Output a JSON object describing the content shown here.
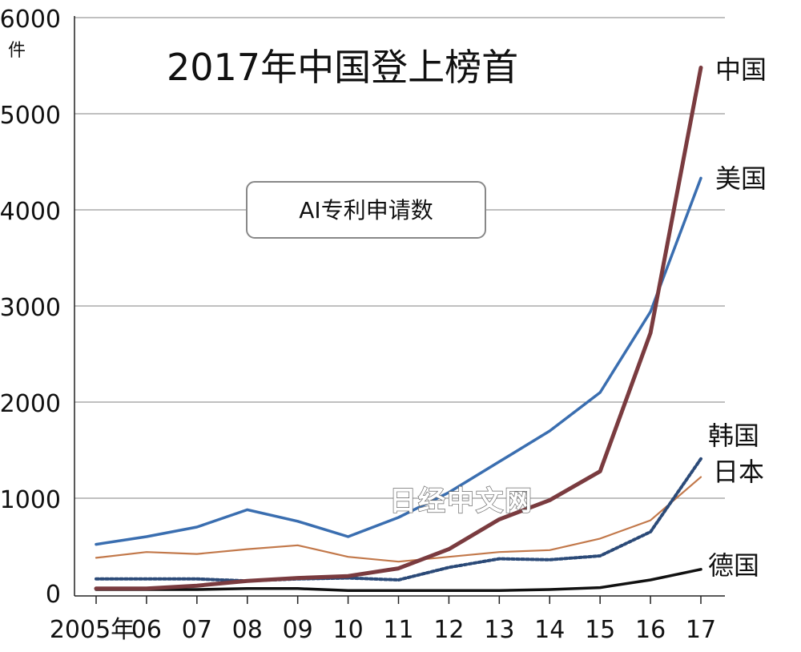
{
  "title": "2017年中国登上榜首",
  "subtitle": "AI专利申请数",
  "watermark": "日经中文网",
  "chart_data": {
    "type": "line",
    "title": "2017年中国登上榜首",
    "subtitle": "AI专利申请数",
    "y_unit": "件",
    "x_tick_labels": [
      "2005年",
      "06",
      "07",
      "08",
      "09",
      "10",
      "11",
      "12",
      "13",
      "14",
      "15",
      "16",
      "17"
    ],
    "x": [
      2005,
      2006,
      2007,
      2008,
      2009,
      2010,
      2011,
      2012,
      2013,
      2014,
      2015,
      2016,
      2017
    ],
    "y_ticks": [
      "0",
      "1000",
      "2000",
      "3000",
      "4000",
      "5000",
      "6000"
    ],
    "ylim": [
      0,
      6000
    ],
    "grid": "horizontal",
    "legend": "direct labels at right end of lines",
    "series": [
      {
        "name": "中国",
        "color": "#7a3b3f",
        "style": "solid-thick",
        "values": [
          60,
          60,
          90,
          140,
          170,
          190,
          270,
          470,
          780,
          980,
          1280,
          2720,
          5480
        ]
      },
      {
        "name": "美国",
        "color": "#3a6eb0",
        "style": "solid",
        "values": [
          520,
          600,
          700,
          880,
          760,
          600,
          800,
          1060,
          1380,
          1700,
          2100,
          2940,
          4330
        ]
      },
      {
        "name": "韩国",
        "color": "#2b4a78",
        "style": "dotted",
        "values": [
          160,
          160,
          160,
          140,
          160,
          170,
          150,
          280,
          370,
          360,
          400,
          650,
          1410
        ]
      },
      {
        "name": "日本",
        "color": "#c2784a",
        "style": "solid-thin",
        "values": [
          380,
          440,
          420,
          470,
          510,
          390,
          340,
          390,
          440,
          460,
          580,
          770,
          1220
        ]
      },
      {
        "name": "德国",
        "color": "#111111",
        "style": "solid",
        "values": [
          50,
          50,
          50,
          60,
          60,
          40,
          40,
          40,
          40,
          50,
          70,
          150,
          260
        ]
      }
    ]
  }
}
